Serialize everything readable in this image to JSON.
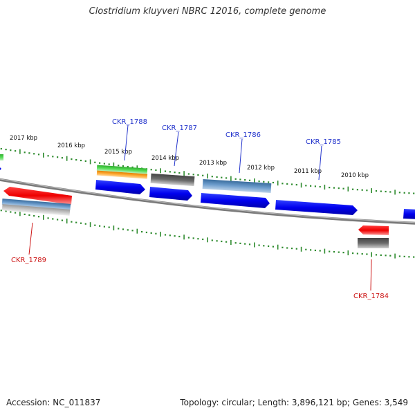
{
  "title": "Clostridium kluyveri NBRC 12016, complete genome",
  "accession": "Accession: NC_011837",
  "genome_info": "Topology: circular; Length: 3,896,121 bp; Genes: 3,549",
  "colors": {
    "blue": "#0000ee",
    "steel": "#4f83b8",
    "red": "#ee0000",
    "green": "#33bb33",
    "orange": "#f0900a",
    "gray": "#555555",
    "tick": "#2e8b2e",
    "backbone": "#7a7a7a",
    "label_blue": "#2233cc",
    "label_red": "#cc1111"
  },
  "kbp_labels": [
    "2017 kbp",
    "2016 kbp",
    "2015 kbp",
    "2014 kbp",
    "2013 kbp",
    "2012 kbp",
    "2011 kbp",
    "2010 kbp"
  ],
  "gene_labels": [
    "CKR_1788",
    "CKR_1787",
    "CKR_1786",
    "CKR_1785",
    "CKR_1789",
    "CKR_1784"
  ]
}
